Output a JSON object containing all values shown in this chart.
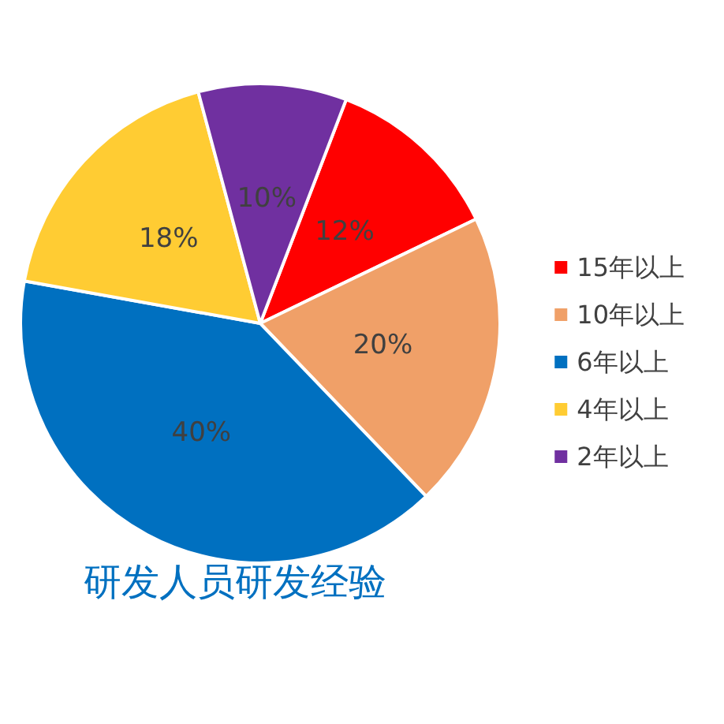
{
  "chart_data": {
    "type": "pie",
    "title": "研发人员研发经验",
    "categories": [
      "15年以上",
      "10年以上",
      "6年以上",
      "4年以上",
      "2年以上"
    ],
    "values": [
      12,
      20,
      40,
      18,
      10
    ],
    "value_labels": [
      "12%",
      "20%",
      "40%",
      "18%",
      "10%"
    ],
    "colors": [
      "#ff0000",
      "#f0a068",
      "#0070c0",
      "#ffcc33",
      "#7030a0"
    ],
    "legend": "right"
  }
}
